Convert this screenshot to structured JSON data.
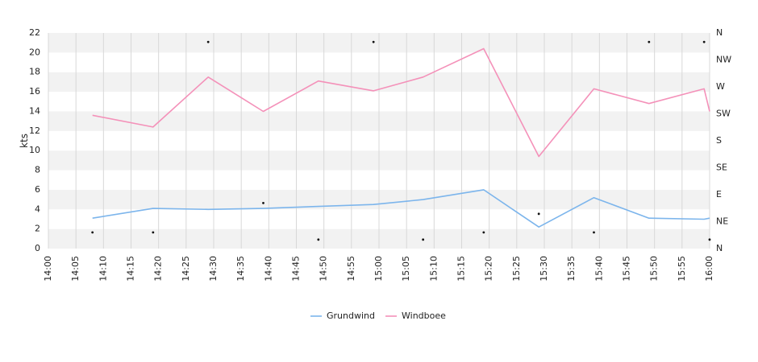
{
  "chart_data": {
    "type": "line",
    "ylabel": "kts",
    "ylim": [
      0,
      22
    ],
    "y_ticks": [
      "0",
      "2",
      "4",
      "6",
      "8",
      "10",
      "12",
      "14",
      "16",
      "18",
      "20",
      "22"
    ],
    "x_range": [
      "14:00",
      "16:00"
    ],
    "x_ticks": [
      "14:00",
      "14:05",
      "14:10",
      "14:15",
      "14:20",
      "14:25",
      "14:30",
      "14:35",
      "14:40",
      "14:45",
      "14:50",
      "14:55",
      "15:00",
      "15:05",
      "15:10",
      "15:15",
      "15:20",
      "15:25",
      "15:30",
      "15:35",
      "15:40",
      "15:45",
      "15:50",
      "15:55",
      "16:00"
    ],
    "direction_axis": {
      "labels": [
        "N",
        "NE",
        "E",
        "SE",
        "S",
        "SW",
        "W",
        "NW",
        "N"
      ],
      "range_degrees": [
        0,
        360
      ]
    },
    "grid": true,
    "legend_position": "bottom",
    "series": [
      {
        "name": "Grundwind",
        "color": "#7cb5ec",
        "x": [
          "14:08",
          "14:19",
          "14:29",
          "14:39",
          "14:49",
          "14:59",
          "15:08",
          "15:19",
          "15:29",
          "15:39",
          "15:49",
          "15:59",
          "16:00"
        ],
        "values": [
          3.1,
          4.1,
          4.0,
          4.1,
          4.3,
          4.5,
          5.0,
          6.0,
          2.2,
          5.2,
          3.1,
          3.0,
          3.1
        ]
      },
      {
        "name": "Windboee",
        "color": "#f491b9",
        "x": [
          "14:08",
          "14:19",
          "14:29",
          "14:39",
          "14:49",
          "14:59",
          "15:08",
          "15:19",
          "15:29",
          "15:39",
          "15:49",
          "15:59",
          "16:00"
        ],
        "values": [
          13.6,
          12.4,
          17.5,
          14.0,
          17.1,
          16.1,
          17.5,
          20.4,
          9.4,
          16.3,
          14.8,
          16.3,
          14.0
        ]
      }
    ],
    "direction_points": {
      "x": [
        "14:08",
        "14:19",
        "14:29",
        "14:39",
        "14:49",
        "14:59",
        "15:08",
        "15:19",
        "15:29",
        "15:39",
        "15:49",
        "15:59",
        "16:00"
      ],
      "degrees": [
        27,
        27,
        345,
        76,
        15,
        345,
        15,
        27,
        58,
        27,
        345,
        345,
        15
      ]
    }
  }
}
